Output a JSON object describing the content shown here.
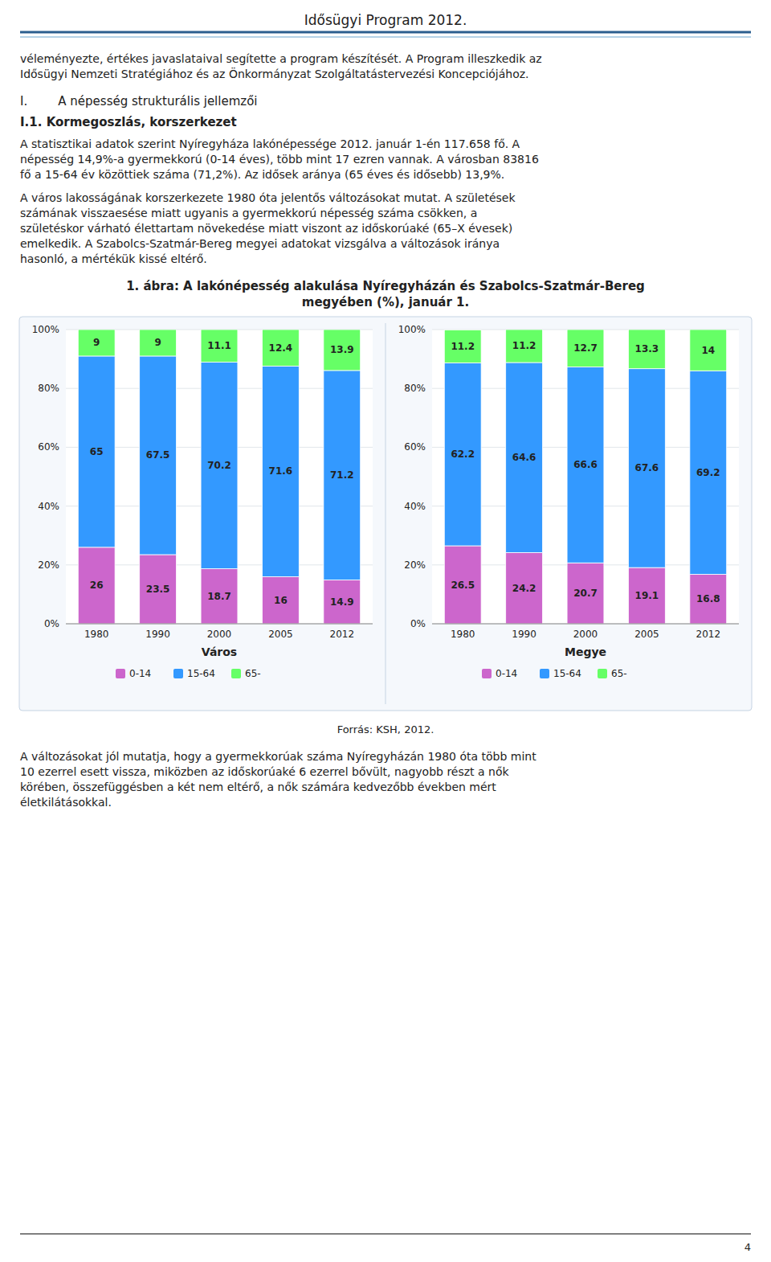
{
  "page_title": "Idősügyi Program 2012.",
  "intro_lines": [
    "véleményezte, értékes javaslataival segítette a program készítését. A Program illeszkedik az",
    "Idősügyi Nemzeti Stratégiához és az Önkormányzat Szolgáltatástervezési Koncepciójához."
  ],
  "section_title": "I.        A népesség strukturális jellemzői",
  "subsection_title": "I.1. Kormegoszlás, korszerkezet",
  "paragraph_1": [
    "A statisztikai adatok szerint Nyíregyháza lakónépessége 2012. január 1-én 117.658 fő. A",
    "népesség 14,9%-a gyermekkorú (0-14 éves), több mint 17 ezren vannak. A városban 83816",
    "fő a 15-64 év közöttiek száma (71,2%). Az idősek aránya (65 éves és idősebb) 13,9%."
  ],
  "paragraph_2": [
    "A város lakosságának korszerkezete 1980 óta jelentős változásokat mutat. A születések",
    "számának visszaesése miatt ugyanis a gyermekkorú népesség száma csökken, a",
    "születéskor várható élettartam növekedése miatt viszont az időskorúaké (65–X évesek)",
    "emelkedik. A Szabolcs-Szatmár-Bereg megyei adatokat vizsgálva a változások iránya",
    "hasonló, a mértékük kissé eltérő."
  ],
  "figure_title": [
    "1.  ábra: A lakónépesség alakulása Nyíregyházán és Szabolcs-Szatmár-Bereg",
    "megyében (%), január 1."
  ],
  "chart_data": [
    {
      "type": "bar",
      "stacked": true,
      "x_label": "Város",
      "categories": [
        "1980",
        "1990",
        "2000",
        "2005",
        "2012"
      ],
      "series": [
        {
          "name": "0-14",
          "color": "#CC66CC",
          "values": [
            26.0,
            23.5,
            18.7,
            16.0,
            14.9
          ]
        },
        {
          "name": "15-64",
          "color": "#3399FF",
          "values": [
            65.0,
            67.5,
            70.2,
            71.6,
            71.2
          ]
        },
        {
          "name": "65-",
          "color": "#66FF66",
          "values": [
            9.0,
            9.0,
            11.1,
            12.4,
            13.9
          ]
        }
      ],
      "ylim": [
        0,
        100
      ],
      "yticks": [
        {
          "value": 0,
          "label": "0%"
        },
        {
          "value": 20,
          "label": "20%"
        },
        {
          "value": 40,
          "label": "40%"
        },
        {
          "value": 60,
          "label": "60%"
        },
        {
          "value": 80,
          "label": "80%"
        },
        {
          "value": 100,
          "label": "100%"
        }
      ],
      "grid": true,
      "data_labels": true,
      "legend": "bottom"
    },
    {
      "type": "bar",
      "stacked": true,
      "x_label": "Megye",
      "categories": [
        "1980",
        "1990",
        "2000",
        "2005",
        "2012"
      ],
      "series": [
        {
          "name": "0-14",
          "color": "#CC66CC",
          "values": [
            26.5,
            24.2,
            20.7,
            19.1,
            16.8
          ]
        },
        {
          "name": "15-64",
          "color": "#3399FF",
          "values": [
            62.2,
            64.6,
            66.6,
            67.6,
            69.2
          ]
        },
        {
          "name": "65-",
          "color": "#66FF66",
          "values": [
            11.2,
            11.2,
            12.7,
            13.3,
            14.0
          ]
        }
      ],
      "ylim": [
        0,
        100
      ],
      "yticks": [
        {
          "value": 0,
          "label": "0%"
        },
        {
          "value": 20,
          "label": "20%"
        },
        {
          "value": 40,
          "label": "40%"
        },
        {
          "value": 60,
          "label": "60%"
        },
        {
          "value": 80,
          "label": "80%"
        },
        {
          "value": 100,
          "label": "100%"
        }
      ],
      "grid": true,
      "data_labels": true,
      "legend": "bottom"
    }
  ],
  "footer_text": "Forrás: KSH, 2012.",
  "paragraph_3": [
    "A változásokat jól mutatja, hogy a gyermekkorúak száma Nyíregyházán 1980 óta több mint",
    "10 ezerrel esett vissza, miközben az időskorúaké 6 ezerrel bővült, nagyobb részt a nők",
    "körében, összefüggésben a két nem eltérő, a nők számára kedvezőbb években mért",
    "életkilátásokkal."
  ],
  "page_number": "4"
}
